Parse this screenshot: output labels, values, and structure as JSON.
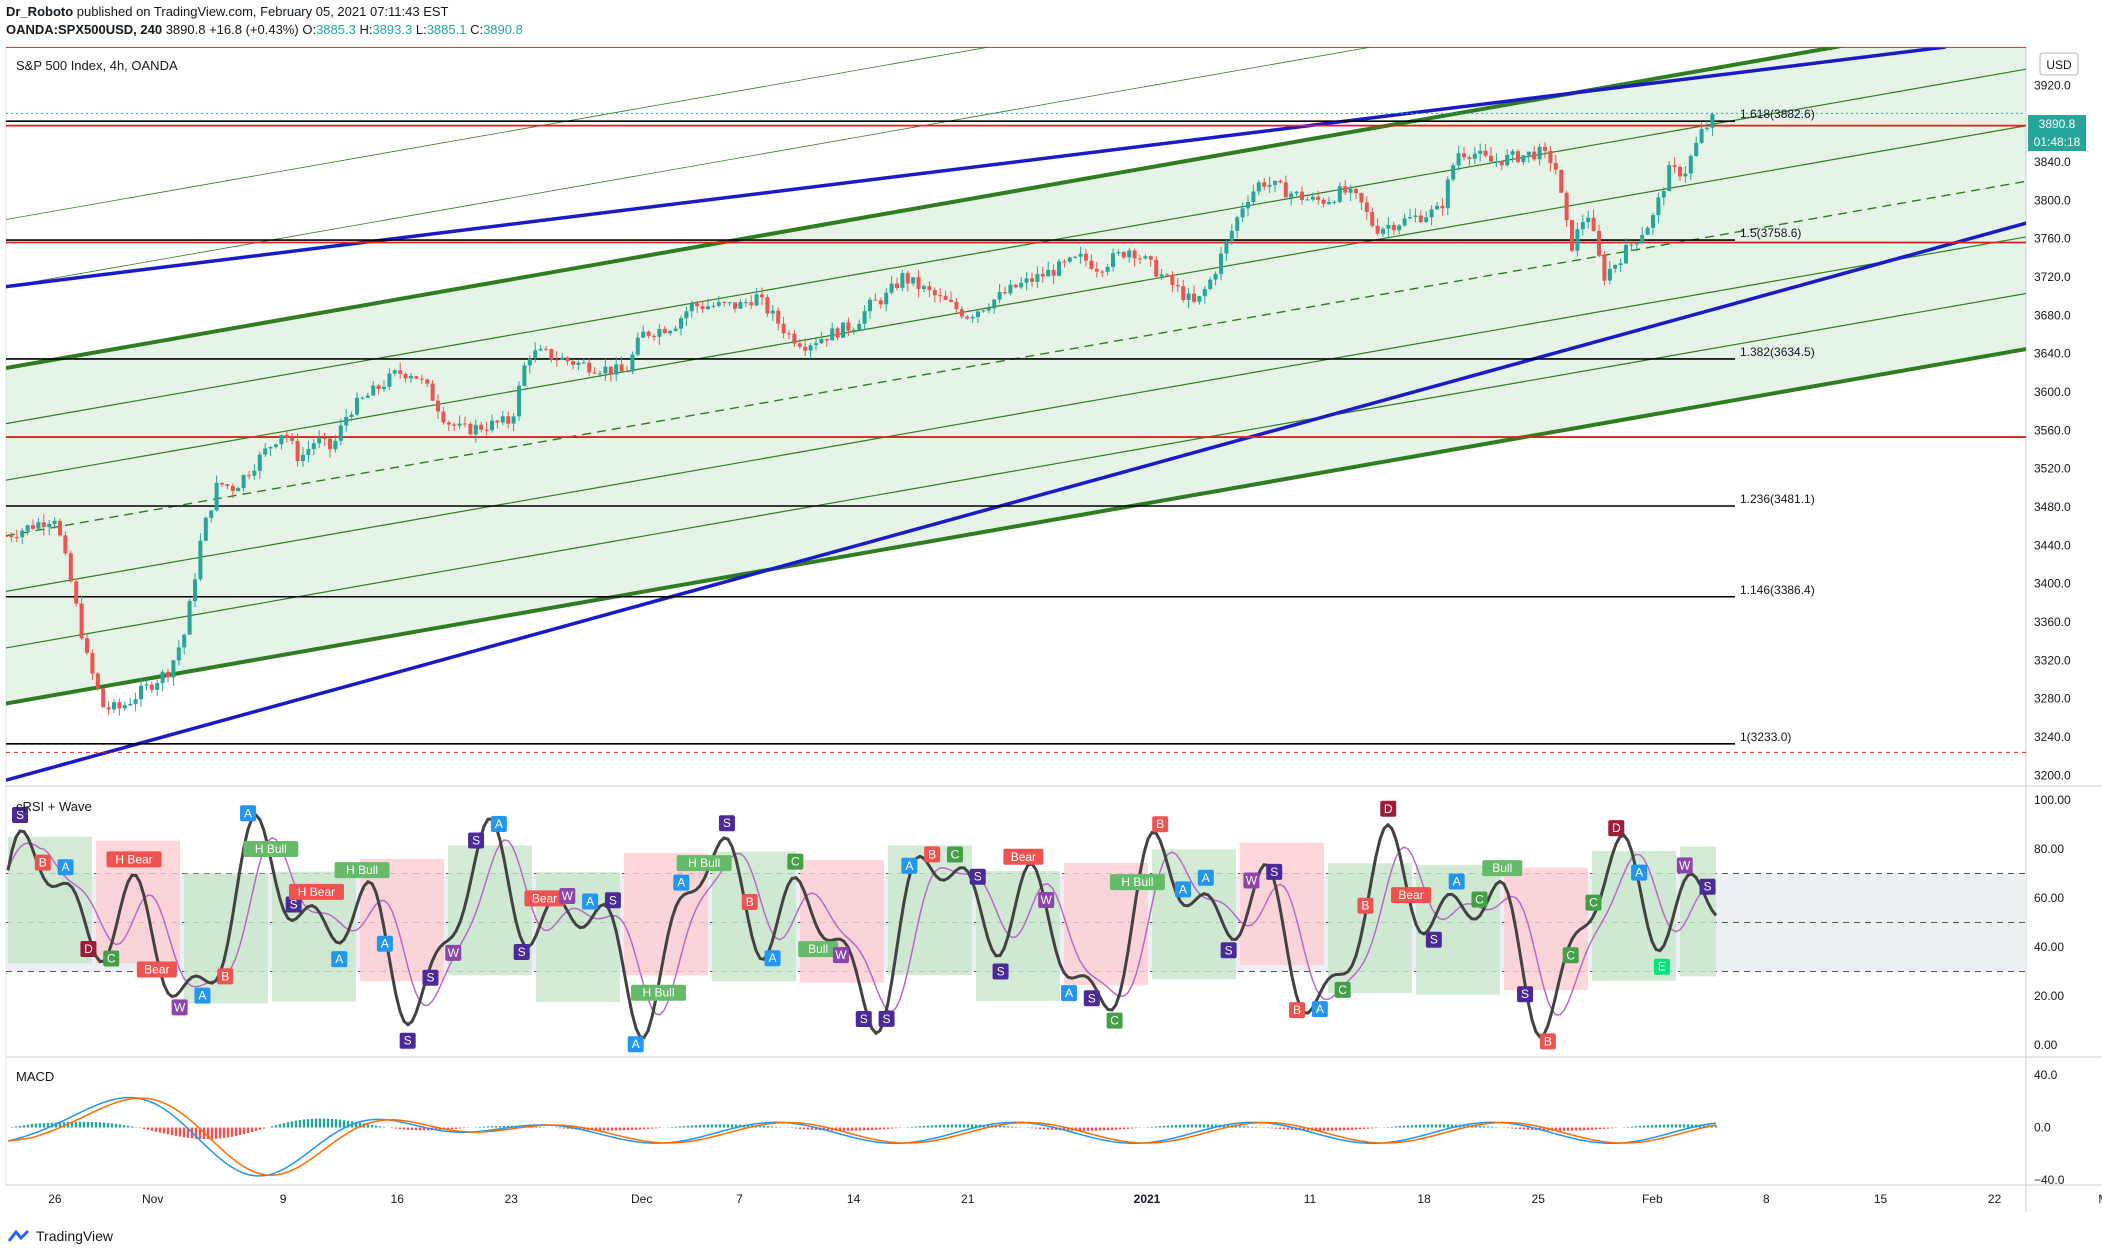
{
  "header": {
    "publisher": "Dr_Roboto",
    "published_text": "published on TradingView.com, February 05, 2021 07:11:43 EST",
    "symbol_line": "OANDA:SPX500USD, 240",
    "last": "3890.8",
    "change": "+16.8 (+0.43%)",
    "open_label": "O:",
    "open": "3885.3",
    "high_label": "H:",
    "high": "3893.3",
    "low_label": "L:",
    "low": "3885.1",
    "close_label": "C:",
    "close": "3890.8"
  },
  "main_pane": {
    "title": "S&P 500 Index, 4h, OANDA",
    "currency_button": "USD",
    "price_tag": "3890.8",
    "countdown_tag": "01:48:18"
  },
  "footer": {
    "brand": "TradingView"
  },
  "colors": {
    "up": "#26a69a",
    "down": "#ef5350",
    "channel_green": "#2e7d1f",
    "blue_trend": "#1a1ac8",
    "red_level": "#e0201a",
    "black_level": "#000000",
    "bull_zone": "#c8e6c9",
    "bear_zone": "#ffcdd2",
    "rsi_line": "#424242",
    "rsi_signal": "#ba68c8",
    "macd": "#2196f3",
    "signal": "#ff6d00"
  },
  "chart_data": [
    {
      "type": "candlestick",
      "title": "S&P 500 Index, 4h, OANDA",
      "xlabel": "",
      "ylabel": "",
      "ylim": [
        3190,
        3960
      ],
      "y_ticks": [
        "3920.0",
        "3880.0",
        "3840.0",
        "3800.0",
        "3760.0",
        "3720.0",
        "3680.0",
        "3640.0",
        "3600.0",
        "3560.0",
        "3520.0",
        "3480.0",
        "3440.0",
        "3400.0",
        "3360.0",
        "3320.0",
        "3280.0",
        "3240.0",
        "3200.0"
      ],
      "x_ticks": [
        "26",
        "Nov",
        "9",
        "16",
        "23",
        "Dec",
        "7",
        "14",
        "21",
        "2021",
        "11",
        "18",
        "25",
        "Feb",
        "8",
        "15",
        "22",
        "Mar"
      ],
      "price_path": [
        [
          "Oct 23",
          3450
        ],
        [
          "Oct 26",
          3470
        ],
        [
          "Oct 27",
          3400
        ],
        [
          "Oct 28",
          3320
        ],
        [
          "Oct 29",
          3270
        ],
        [
          "Oct 30",
          3270
        ],
        [
          "Nov 2",
          3310
        ],
        [
          "Nov 3",
          3350
        ],
        [
          "Nov 4",
          3450
        ],
        [
          "Nov 5",
          3505
        ],
        [
          "Nov 6",
          3500
        ],
        [
          "Nov 9",
          3560
        ],
        [
          "Nov 10",
          3530
        ],
        [
          "Nov 11",
          3550
        ],
        [
          "Nov 12",
          3540
        ],
        [
          "Nov 13",
          3580
        ],
        [
          "Nov 16",
          3620
        ],
        [
          "Nov 17",
          3620
        ],
        [
          "Nov 18",
          3600
        ],
        [
          "Nov 19",
          3570
        ],
        [
          "Nov 20",
          3560
        ],
        [
          "Nov 23",
          3570
        ],
        [
          "Nov 24",
          3640
        ],
        [
          "Nov 25",
          3640
        ],
        [
          "Nov 27",
          3630
        ],
        [
          "Nov 30",
          3620
        ],
        [
          "Dec 1",
          3660
        ],
        [
          "Dec 2",
          3665
        ],
        [
          "Dec 3",
          3670
        ],
        [
          "Dec 4",
          3690
        ],
        [
          "Dec 7",
          3690
        ],
        [
          "Dec 8",
          3700
        ],
        [
          "Dec 9",
          3680
        ],
        [
          "Dec 10",
          3660
        ],
        [
          "Dec 11",
          3650
        ],
        [
          "Dec 14",
          3670
        ],
        [
          "Dec 15",
          3690
        ],
        [
          "Dec 16",
          3700
        ],
        [
          "Dec 17",
          3720
        ],
        [
          "Dec 18",
          3710
        ],
        [
          "Dec 21",
          3680
        ],
        [
          "Dec 22",
          3690
        ],
        [
          "Dec 23",
          3700
        ],
        [
          "Dec 24",
          3710
        ],
        [
          "Dec 28",
          3740
        ],
        [
          "Dec 29",
          3730
        ],
        [
          "Dec 30",
          3740
        ],
        [
          "Dec 31",
          3750
        ],
        [
          "Jan 4",
          3690
        ],
        [
          "Jan 5",
          3720
        ],
        [
          "Jan 6",
          3760
        ],
        [
          "Jan 7",
          3800
        ],
        [
          "Jan 8",
          3820
        ],
        [
          "Jan 11",
          3800
        ],
        [
          "Jan 12",
          3800
        ],
        [
          "Jan 13",
          3810
        ],
        [
          "Jan 14",
          3800
        ],
        [
          "Jan 15",
          3770
        ],
        [
          "Jan 19",
          3790
        ],
        [
          "Jan 20",
          3850
        ],
        [
          "Jan 21",
          3850
        ],
        [
          "Jan 22",
          3840
        ],
        [
          "Jan 25",
          3850
        ],
        [
          "Jan 26",
          3840
        ],
        [
          "Jan 27",
          3750
        ],
        [
          "Jan 28",
          3790
        ],
        [
          "Jan 29",
          3720
        ],
        [
          "Feb 1",
          3780
        ],
        [
          "Feb 2",
          3830
        ],
        [
          "Feb 3",
          3830
        ],
        [
          "Feb 4",
          3870
        ],
        [
          "Feb 5",
          3890.8
        ]
      ],
      "fib_levels": [
        {
          "label": "1.618(3882.6)",
          "value": 3882.6
        },
        {
          "label": "1.5(3758.6)",
          "value": 3758.6
        },
        {
          "label": "1.382(3634.5)",
          "value": 3634.5
        },
        {
          "label": "1.236(3481.1)",
          "value": 3481.1
        },
        {
          "label": "1.146(3386.4)",
          "value": 3386.4
        },
        {
          "label": "1(3233.0)",
          "value": 3233.0
        }
      ],
      "horizontal_levels_red": [
        3960,
        3878,
        3756,
        3553
      ],
      "regression_channel_center": [
        [
          "Oct 23",
          3450
        ],
        [
          "Mar 1",
          3835
        ]
      ],
      "blue_trendlines": [
        {
          "from": [
            "Oct 23",
            3710
          ],
          "to": [
            "Feb 19",
            3960
          ]
        },
        {
          "from": [
            "Oct 23",
            3195
          ],
          "to": [
            "Mar 1",
            3800
          ]
        }
      ]
    },
    {
      "type": "line",
      "title": "cRSI + Wave",
      "ylim": [
        0,
        100
      ],
      "y_ticks": [
        "100.00",
        "80.00",
        "60.00",
        "40.00",
        "20.00",
        "0.00"
      ],
      "levels": [
        70,
        50,
        30
      ],
      "signals": [
        "S",
        "B",
        "A",
        "D",
        "C",
        "H Bear",
        "Bear",
        "W",
        "A",
        "B",
        "A",
        "H Bull",
        "S",
        "H Bear",
        "A",
        "H Bull",
        "A",
        "S",
        "S",
        "W",
        "S",
        "A",
        "S",
        "Bear",
        "W",
        "A",
        "S",
        "A",
        "H Bull",
        "A",
        "H Bull",
        "S",
        "B",
        "A",
        "C",
        "Bull",
        "W",
        "S",
        "S",
        "A",
        "B",
        "C",
        "S",
        "S",
        "Bear",
        "W",
        "A",
        "S",
        "C",
        "H Bull",
        "B",
        "A",
        "A",
        "S",
        "W",
        "S",
        "B",
        "A",
        "C",
        "B",
        "D",
        "Bear",
        "S",
        "A",
        "C",
        "Bull",
        "S",
        "B",
        "C",
        "C",
        "D",
        "A",
        "E",
        "W",
        "S"
      ]
    },
    {
      "type": "line",
      "title": "MACD",
      "ylim": [
        -40,
        50
      ],
      "y_ticks": [
        "40.0",
        "0.0",
        "−40.0"
      ]
    }
  ]
}
